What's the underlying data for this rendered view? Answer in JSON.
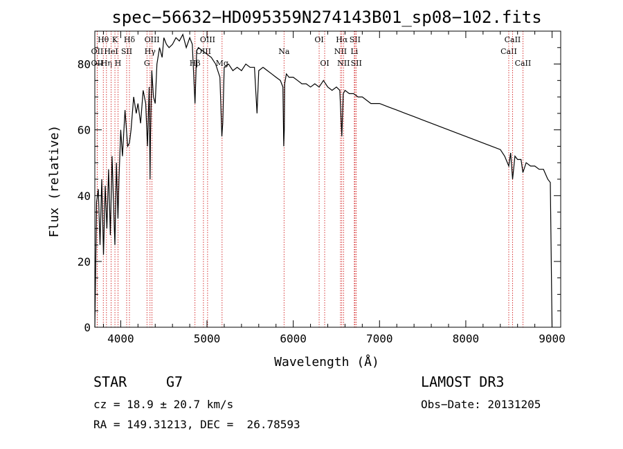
{
  "chart_data": {
    "type": "line",
    "title": "spec−56632−HD095359N274143B01_sp08−102.fits",
    "xlabel": "Wavelength (Å)",
    "ylabel": "Flux (relative)",
    "xlim": [
      3700,
      9100
    ],
    "ylim": [
      0,
      90
    ],
    "xticks": [
      4000,
      5000,
      6000,
      7000,
      8000,
      9000
    ],
    "yticks": [
      0,
      20,
      40,
      60,
      80
    ],
    "grid": false,
    "series": [
      {
        "name": "flux",
        "x": [
          3700,
          3720,
          3740,
          3760,
          3780,
          3800,
          3820,
          3840,
          3860,
          3880,
          3900,
          3920,
          3933,
          3950,
          3968,
          3980,
          4000,
          4020,
          4050,
          4080,
          4101,
          4120,
          4150,
          4180,
          4200,
          4230,
          4260,
          4290,
          4310,
          4330,
          4340,
          4345,
          4360,
          4380,
          4400,
          4420,
          4450,
          4480,
          4500,
          4530,
          4560,
          4600,
          4640,
          4680,
          4720,
          4760,
          4800,
          4830,
          4861,
          4880,
          4900,
          4950,
          5000,
          5050,
          5100,
          5150,
          5172,
          5183,
          5200,
          5250,
          5300,
          5350,
          5400,
          5450,
          5500,
          5550,
          5580,
          5600,
          5650,
          5700,
          5750,
          5800,
          5850,
          5880,
          5890,
          5896,
          5900,
          5920,
          5950,
          6000,
          6050,
          6100,
          6150,
          6200,
          6250,
          6300,
          6350,
          6400,
          6450,
          6500,
          6540,
          6563,
          6580,
          6600,
          6650,
          6700,
          6750,
          6800,
          6900,
          7000,
          7100,
          7200,
          7300,
          7400,
          7500,
          7600,
          7700,
          7800,
          7900,
          8000,
          8100,
          8200,
          8300,
          8400,
          8450,
          8498,
          8520,
          8542,
          8570,
          8600,
          8640,
          8662,
          8700,
          8750,
          8800,
          8850,
          8900,
          8950,
          8980,
          9000
        ],
        "y": [
          0,
          38,
          42,
          25,
          45,
          22,
          43,
          30,
          48,
          28,
          52,
          35,
          25,
          50,
          33,
          45,
          60,
          52,
          66,
          55,
          56,
          60,
          70,
          65,
          68,
          62,
          72,
          68,
          55,
          73,
          45,
          58,
          78,
          70,
          68,
          80,
          85,
          82,
          88,
          86,
          85,
          86,
          88,
          87,
          89,
          85,
          88,
          86,
          68,
          84,
          85,
          84,
          83,
          82,
          80,
          76,
          58,
          62,
          79,
          80,
          78,
          79,
          78,
          80,
          79,
          79,
          65,
          78,
          79,
          78,
          77,
          76,
          75,
          73,
          55,
          60,
          74,
          77,
          76,
          76,
          75,
          74,
          74,
          73,
          74,
          73,
          75,
          73,
          72,
          73,
          72,
          58,
          71,
          72,
          71,
          71,
          70,
          70,
          68,
          68,
          67,
          66,
          65,
          64,
          63,
          62,
          61,
          60,
          59,
          58,
          57,
          56,
          55,
          54,
          52,
          49,
          53,
          45,
          52,
          51,
          51,
          47,
          50,
          49,
          49,
          48,
          48,
          45,
          44,
          0
        ]
      }
    ],
    "line_markers": [
      {
        "label": "OII",
        "lambda": 3727,
        "row": 2
      },
      {
        "label": "Hθ",
        "lambda": 3798,
        "row": 1
      },
      {
        "label": "OII",
        "lambda": 3727,
        "row": 3
      },
      {
        "label": "Hη",
        "lambda": 3835,
        "row": 3
      },
      {
        "label": "HeI",
        "lambda": 3889,
        "row": 2
      },
      {
        "label": "K",
        "lambda": 3933,
        "row": 1
      },
      {
        "label": "H",
        "lambda": 3968,
        "row": 3
      },
      {
        "label": "SII",
        "lambda": 4069,
        "row": 2
      },
      {
        "label": "Hδ",
        "lambda": 4101,
        "row": 1
      },
      {
        "label": "G",
        "lambda": 4304,
        "row": 3
      },
      {
        "label": "Hγ",
        "lambda": 4340,
        "row": 2
      },
      {
        "label": "OIII",
        "lambda": 4363,
        "row": 1
      },
      {
        "label": "Hβ",
        "lambda": 4861,
        "row": 3
      },
      {
        "label": "OIII",
        "lambda": 4959,
        "row": 2
      },
      {
        "label": "OIII",
        "lambda": 5007,
        "row": 1
      },
      {
        "label": "Mg",
        "lambda": 5175,
        "row": 3
      },
      {
        "label": "Na",
        "lambda": 5893,
        "row": 2
      },
      {
        "label": "OI",
        "lambda": 6300,
        "row": 1
      },
      {
        "label": "OI",
        "lambda": 6364,
        "row": 3
      },
      {
        "label": "NII",
        "lambda": 6548,
        "row": 2
      },
      {
        "label": "Hα",
        "lambda": 6563,
        "row": 1
      },
      {
        "label": "NII",
        "lambda": 6583,
        "row": 3
      },
      {
        "label": "SII",
        "lambda": 6716,
        "row": 1
      },
      {
        "label": "Li",
        "lambda": 6708,
        "row": 2
      },
      {
        "label": "SII",
        "lambda": 6731,
        "row": 3
      },
      {
        "label": "CaII",
        "lambda": 8498,
        "row": 2
      },
      {
        "label": "CaII",
        "lambda": 8542,
        "row": 1
      },
      {
        "label": "CaII",
        "lambda": 8662,
        "row": 3
      }
    ]
  },
  "info": {
    "object_type": "STAR",
    "subclass": "G7",
    "survey": "LAMOST DR3",
    "cz": "cz = 18.9 ± 20.7 km/s",
    "obs_date": "Obs−Date: 20131205",
    "coords": "RA = 149.31213, DEC =  26.78593"
  },
  "colors": {
    "line": "#000000",
    "marker": "#cc0000",
    "axes": "#000000"
  }
}
